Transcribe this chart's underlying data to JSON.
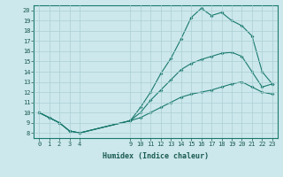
{
  "xlabel": "Humidex (Indice chaleur)",
  "bg_color": "#cce8ec",
  "grid_color": "#aacfd5",
  "line_color": "#1a7a6e",
  "xlim": [
    -0.5,
    23.5
  ],
  "ylim": [
    7.5,
    20.5
  ],
  "xticks": [
    0,
    1,
    2,
    3,
    4,
    9,
    10,
    11,
    12,
    13,
    14,
    15,
    16,
    17,
    18,
    19,
    20,
    21,
    22,
    23
  ],
  "yticks": [
    8,
    9,
    10,
    11,
    12,
    13,
    14,
    15,
    16,
    17,
    18,
    19,
    20
  ],
  "line1_x": [
    0,
    1,
    2,
    3,
    4,
    9,
    10,
    11,
    12,
    13,
    14,
    15,
    16,
    17,
    18,
    19,
    20,
    21,
    22,
    23
  ],
  "line1_y": [
    10.0,
    9.5,
    9.0,
    8.2,
    8.0,
    9.2,
    10.5,
    12.0,
    13.8,
    15.3,
    17.2,
    19.3,
    20.2,
    19.5,
    19.8,
    19.0,
    18.5,
    17.5,
    14.0,
    12.8
  ],
  "line2_x": [
    0,
    1,
    2,
    3,
    4,
    9,
    10,
    11,
    12,
    13,
    14,
    15,
    16,
    17,
    18,
    19,
    20,
    21,
    22,
    23
  ],
  "line2_y": [
    10.0,
    9.5,
    9.0,
    8.2,
    8.0,
    9.2,
    10.0,
    11.2,
    12.2,
    13.2,
    14.2,
    14.8,
    15.2,
    15.5,
    15.8,
    15.9,
    15.5,
    14.0,
    12.5,
    12.8
  ],
  "line3_x": [
    0,
    1,
    2,
    3,
    4,
    9,
    10,
    11,
    12,
    13,
    14,
    15,
    16,
    17,
    18,
    19,
    20,
    21,
    22,
    23
  ],
  "line3_y": [
    10.0,
    9.5,
    9.0,
    8.2,
    8.0,
    9.2,
    9.5,
    10.0,
    10.5,
    11.0,
    11.5,
    11.8,
    12.0,
    12.2,
    12.5,
    12.8,
    13.0,
    12.5,
    12.0,
    11.8
  ]
}
